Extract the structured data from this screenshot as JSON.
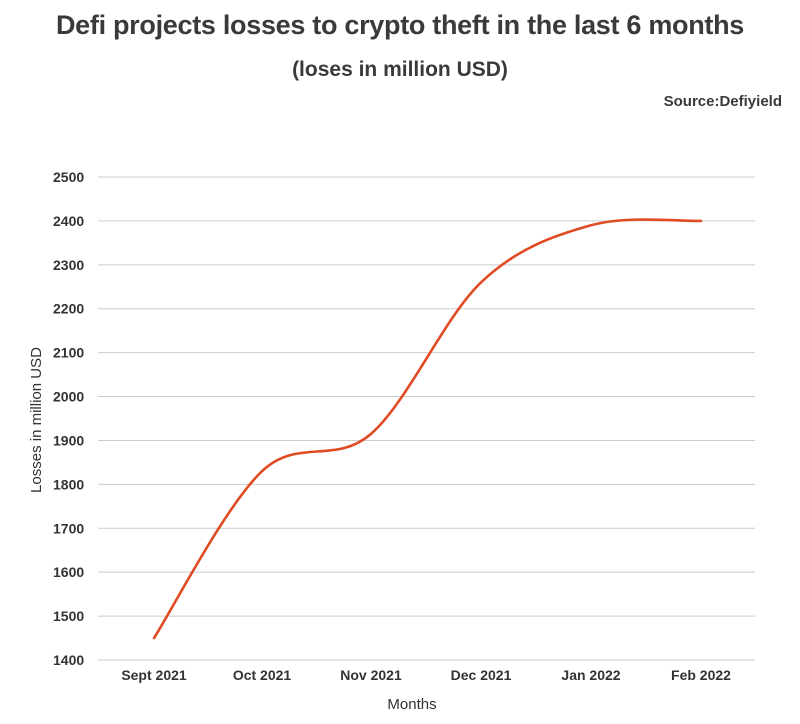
{
  "header": {
    "title": "Defi projects losses to crypto theft in the last 6 months",
    "subtitle": "(loses in million USD)",
    "source": "Source:Defiyield"
  },
  "chart_data": {
    "type": "line",
    "title": "Defi projects losses to crypto theft in the last 6 months",
    "subtitle": "(loses in million USD)",
    "xlabel": "Months",
    "ylabel": "Losses in million USD",
    "categories": [
      "Sept 2021",
      "Oct 2021",
      "Nov 2021",
      "Dec 2021",
      "Jan 2022",
      "Feb 2022"
    ],
    "series": [
      {
        "values": [
          1450,
          1830,
          1915,
          2260,
          2390,
          2400
        ]
      }
    ],
    "ylim": [
      1400,
      2500
    ],
    "yticks": [
      1400,
      1500,
      1600,
      1700,
      1800,
      1900,
      2000,
      2100,
      2200,
      2300,
      2400,
      2500
    ],
    "grid": true,
    "line_color": "#e04b23",
    "grid_color": "#cccccc"
  }
}
